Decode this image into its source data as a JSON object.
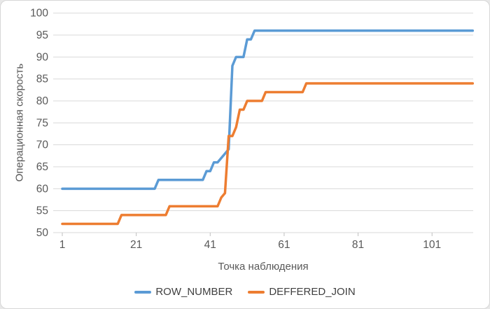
{
  "chart_data": {
    "type": "line",
    "title": "",
    "xlabel": "Точка наблюдения",
    "ylabel": "Операционная скорость",
    "x_ticks": [
      1,
      21,
      41,
      61,
      81,
      101
    ],
    "x_range": [
      1,
      112
    ],
    "ylim": [
      50,
      100
    ],
    "y_ticks": [
      50,
      55,
      60,
      65,
      70,
      75,
      80,
      85,
      90,
      95,
      100
    ],
    "grid": true,
    "legend_position": "bottom",
    "series": [
      {
        "name": "ROW_NUMBER",
        "color": "#5B9BD5",
        "runs": [
          [
            1,
            26,
            60
          ],
          [
            27,
            39,
            62
          ],
          [
            40,
            41,
            64
          ],
          [
            42,
            43,
            66
          ],
          [
            44,
            44,
            67
          ],
          [
            45,
            45,
            68
          ],
          [
            46,
            46,
            69
          ],
          [
            47,
            47,
            88
          ],
          [
            48,
            50,
            90
          ],
          [
            51,
            52,
            94
          ],
          [
            53,
            112,
            96
          ]
        ]
      },
      {
        "name": "DEFFERED_JOIN",
        "color": "#ED7D31",
        "runs": [
          [
            1,
            16,
            52
          ],
          [
            17,
            29,
            54
          ],
          [
            30,
            43,
            56
          ],
          [
            44,
            44,
            58
          ],
          [
            45,
            45,
            59
          ],
          [
            46,
            47,
            72
          ],
          [
            48,
            48,
            74
          ],
          [
            49,
            50,
            78
          ],
          [
            51,
            55,
            80
          ],
          [
            56,
            66,
            82
          ],
          [
            67,
            112,
            84
          ]
        ]
      }
    ]
  },
  "style": {
    "grid_color": "#d9d9d9",
    "tick_mark_color": "#bfbfbf",
    "tick_label_color": "#595959",
    "line_width": 3.5
  }
}
